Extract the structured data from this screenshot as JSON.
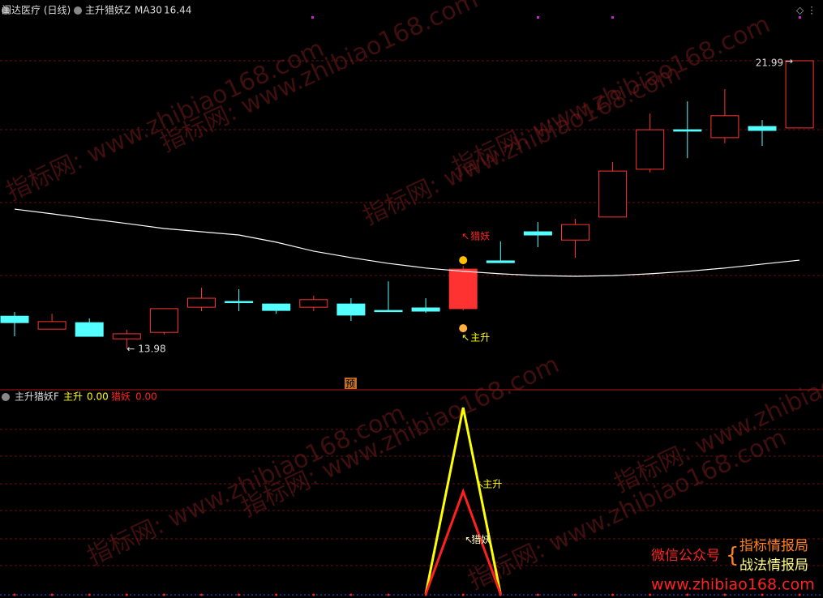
{
  "chart_data": [
    {
      "type": "candlestick",
      "title": "闰达医疗 (日线)",
      "indicator": "主升猎妖Z",
      "ylim": [
        12.9,
        23.23
      ],
      "open": [
        14.88,
        14.52,
        14.7,
        14.25,
        14.43,
        15.13,
        15.29,
        15.22,
        15.13,
        15.22,
        15.04,
        15.11,
        15.09,
        16.42,
        17.23,
        17.0,
        17.64,
        18.97,
        20.07,
        19.85,
        20.16,
        20.12
      ],
      "high": [
        15.0,
        14.95,
        14.82,
        14.5,
        15.09,
        15.67,
        15.63,
        15.22,
        15.45,
        15.38,
        15.85,
        15.38,
        16.28,
        16.96,
        17.5,
        17.59,
        19.17,
        20.52,
        20.86,
        21.2,
        20.34,
        21.99
      ],
      "low": [
        14.32,
        14.52,
        14.32,
        13.98,
        14.37,
        15.02,
        15.02,
        14.95,
        15.02,
        14.75,
        15.02,
        14.97,
        15.04,
        16.37,
        16.8,
        16.51,
        17.64,
        18.88,
        19.28,
        19.69,
        19.62,
        20.12
      ],
      "close": [
        14.7,
        14.73,
        14.32,
        14.39,
        15.09,
        15.38,
        15.27,
        15.04,
        15.34,
        14.91,
        15.02,
        15.02,
        16.19,
        16.37,
        17.14,
        17.43,
        18.92,
        20.07,
        20.03,
        20.46,
        20.05,
        21.99
      ],
      "up_color": "#ff3232",
      "down_color": "#54ffff",
      "series": [
        {
          "name": "MA30",
          "color": "#ffffff",
          "values": [
            17.86,
            17.73,
            17.59,
            17.46,
            17.32,
            17.23,
            17.14,
            16.94,
            16.69,
            16.51,
            16.35,
            16.22,
            16.13,
            16.06,
            16.01,
            15.99,
            16.01,
            16.06,
            16.13,
            16.22,
            16.33,
            16.44
          ]
        }
      ],
      "annotations": [
        {
          "text": "猎妖",
          "index": 12,
          "color": "#ff2020"
        },
        {
          "text": "主升",
          "index": 12,
          "color": "#ffff00"
        }
      ],
      "marker": "预"
    },
    {
      "type": "line",
      "title": "主升猎妖F",
      "ylim": [
        0,
        1.1
      ],
      "series": [
        {
          "name": "主升",
          "color": "#ffff00",
          "last": {
            "value": 0,
            "label": "0.00"
          },
          "values": [
            null,
            null,
            null,
            null,
            null,
            null,
            null,
            null,
            null,
            null,
            null,
            0,
            1,
            0,
            null,
            null,
            null,
            null,
            null,
            null,
            null,
            null
          ]
        },
        {
          "name": "猎妖",
          "color": "#ff2020",
          "last": {
            "value": 0,
            "label": "0.00"
          },
          "values": [
            null,
            null,
            null,
            null,
            null,
            null,
            null,
            null,
            null,
            null,
            null,
            0,
            0.55,
            0,
            null,
            null,
            null,
            null,
            null,
            null,
            null,
            null
          ]
        }
      ],
      "annotations": [
        {
          "text": "主升",
          "index": 12,
          "color": "#ffff00"
        },
        {
          "text": "猎妖",
          "index": 12,
          "color": "#ffffc0"
        }
      ]
    }
  ],
  "watermark": "指标网: www.zhibiao168.com",
  "footer": {
    "wechat": "微信公众号",
    "account1": "指标情报局",
    "account2": "战法情报局",
    "site": "www.zhibiao168.com"
  }
}
